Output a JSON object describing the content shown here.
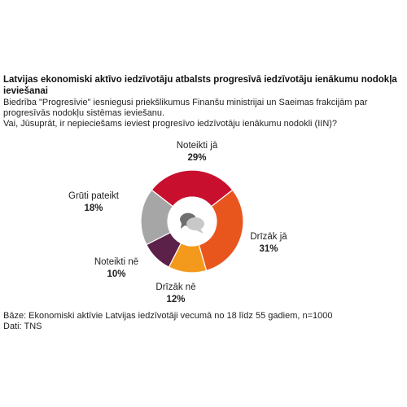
{
  "title": "Latvijas ekonomiski aktīvo iedzīvotāju atbalsts progresīvā iedzīvotāju ienākumu nodokļa ieviešanai",
  "subtitle": "Biedrība \"Progresīvie\" iesniegusi priekšlikumus Finanšu ministrijai un Saeimas frakcijām par progresīvās nodokļu sistēmas ieviešanu.",
  "question": "Vai, Jūsuprāt, ir nepieciešams ieviest progresīvo iedzīvotāju ienākumu nodokli (IIN)?",
  "footer": {
    "base": "Bāze: Ekonomiski aktīvie Latvijas iedzīvotāji vecumā no 18 līdz 55 gadiem, n=1000",
    "source": "Dati: TNS"
  },
  "center_icon": "speech-bubbles-icon",
  "chart_data": {
    "type": "pie",
    "donut": true,
    "slices": [
      {
        "label": "Noteikti jā",
        "value": 29,
        "display": "29%",
        "color": "#c8102e"
      },
      {
        "label": "Drīzāk jā",
        "value": 31,
        "display": "31%",
        "color": "#e8561e"
      },
      {
        "label": "Drīzāk nē",
        "value": 12,
        "display": "12%",
        "color": "#f39a1d"
      },
      {
        "label": "Noteikti nē",
        "value": 10,
        "display": "10%",
        "color": "#5b2148"
      },
      {
        "label": "Grūti pateikt",
        "value": 18,
        "display": "18%",
        "color": "#a6a6a6"
      }
    ]
  }
}
